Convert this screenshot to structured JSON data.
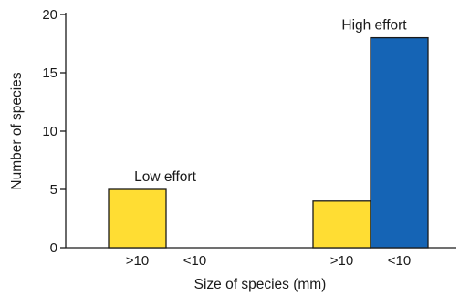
{
  "chart_data": {
    "type": "bar",
    "xlabel": "Size of species (mm)",
    "ylabel": "Number of species",
    "ylim": [
      0,
      20
    ],
    "yticks": [
      0,
      5,
      10,
      15,
      20
    ],
    "groups": [
      {
        "label": "Low effort",
        "categories": [
          ">10",
          "<10"
        ],
        "values": [
          5,
          0
        ],
        "colors": [
          "#ffdd33",
          "#1564b5"
        ]
      },
      {
        "label": "High effort",
        "categories": [
          ">10",
          "<10"
        ],
        "values": [
          4,
          18
        ],
        "colors": [
          "#ffdd33",
          "#1564b5"
        ]
      }
    ],
    "grid": false,
    "legend": "none"
  }
}
